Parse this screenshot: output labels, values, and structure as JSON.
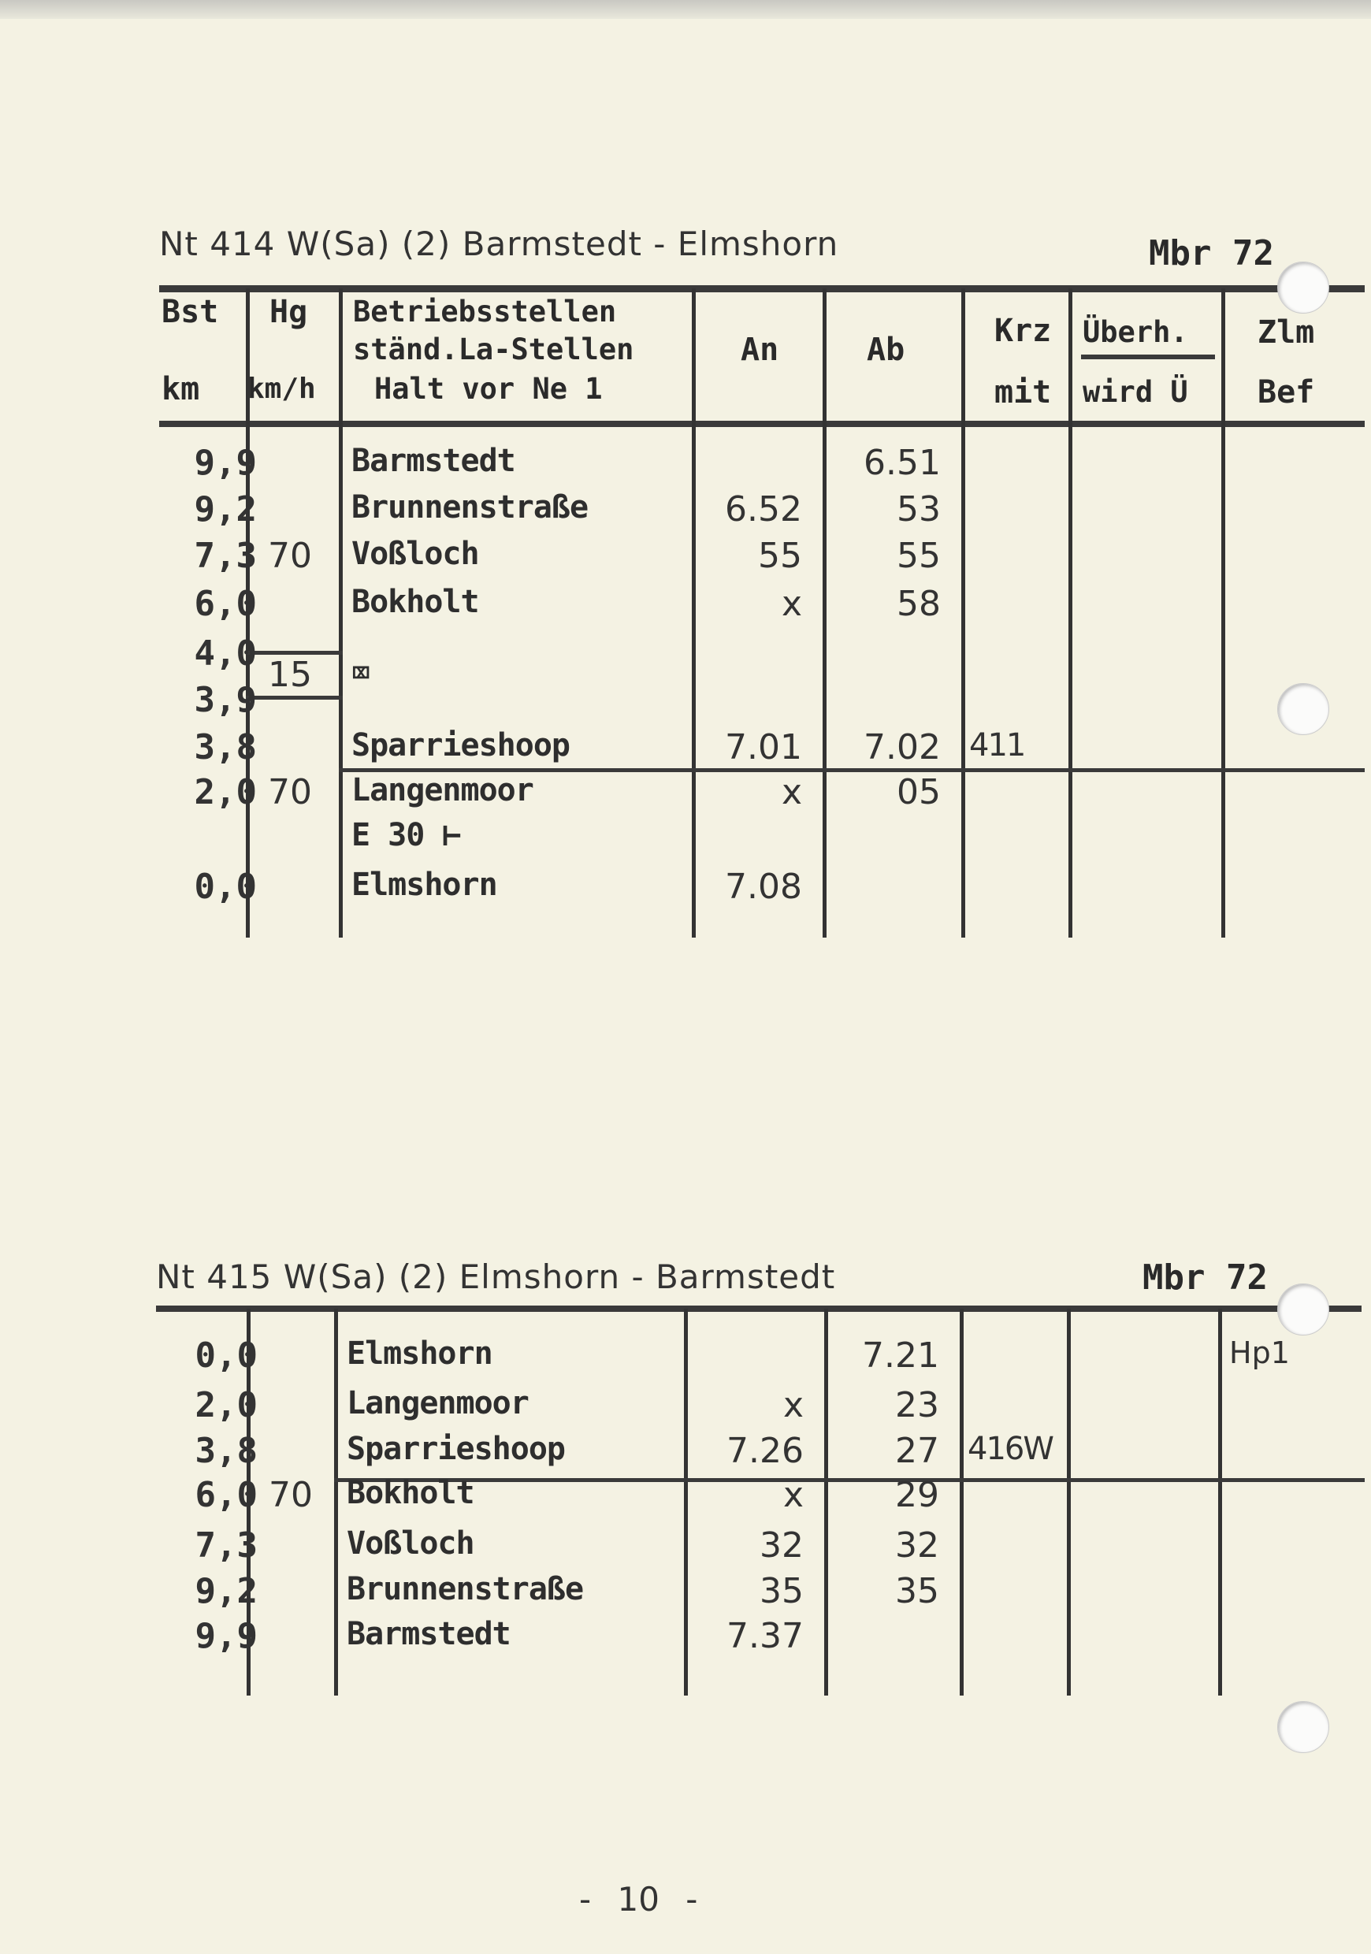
{
  "timetables": [
    {
      "title": "Nt 414 W(Sa) (2)  Barmstedt - Elmshorn",
      "valid": "Mbr 72",
      "headers": {
        "bst": "Bst",
        "km": "km",
        "hg": "Hg",
        "kmh": "km/h",
        "betrieb1": "Betriebsstellen",
        "betrieb2": "ständ.La-Stellen",
        "betrieb3": "Halt vor Ne 1",
        "an": "An",
        "ab": "Ab",
        "krz": "Krz",
        "mit": "mit",
        "uberh": "Überh.",
        "wird": "wird Ü",
        "zlm": "Zlm",
        "bef": "Bef"
      },
      "rows": [
        {
          "km": "9,9",
          "hg": "",
          "station": "Barmstedt",
          "an": "",
          "ab": "6.51",
          "krz": "",
          "zlm": ""
        },
        {
          "km": "9,2",
          "hg": "",
          "station": "Brunnenstraße",
          "an": "6.52",
          "ab": "53",
          "krz": "",
          "zlm": ""
        },
        {
          "km": "7,3",
          "hg": "70",
          "station": "Voßloch",
          "an": "55",
          "ab": "55",
          "krz": "",
          "zlm": ""
        },
        {
          "km": "6,0",
          "hg": "",
          "station": "Bokholt",
          "an": "x",
          "ab": "58",
          "krz": "",
          "zlm": ""
        },
        {
          "km": "4,0",
          "hg": "",
          "station": "",
          "an": "",
          "ab": "",
          "krz": "",
          "zlm": ""
        },
        {
          "km": "3,9",
          "hg": "15",
          "station": "⌧",
          "an": "",
          "ab": "",
          "krz": "",
          "zlm": ""
        },
        {
          "km": "3,8",
          "hg": "",
          "station": "Sparrieshoop",
          "an": "7.01",
          "ab": "7.02",
          "krz": "411",
          "zlm": ""
        },
        {
          "km": "2,0",
          "hg": "70",
          "station": "Langenmoor",
          "an": "x",
          "ab": "05",
          "krz": "",
          "zlm": ""
        },
        {
          "km": "",
          "hg": "",
          "station": "E 30 ⊢",
          "an": "",
          "ab": "",
          "krz": "",
          "zlm": ""
        },
        {
          "km": "0,0",
          "hg": "",
          "station": "Elmshorn",
          "an": "7.08",
          "ab": "",
          "krz": "",
          "zlm": ""
        }
      ]
    },
    {
      "title": "Nt 415 W(Sa) (2)  Elmshorn - Barmstedt",
      "valid": "Mbr 72",
      "rows": [
        {
          "km": "0,0",
          "hg": "",
          "station": "Elmshorn",
          "an": "",
          "ab": "7.21",
          "krz": "",
          "zlm": "Hp1"
        },
        {
          "km": "2,0",
          "hg": "",
          "station": "Langenmoor",
          "an": "x",
          "ab": "23",
          "krz": "",
          "zlm": ""
        },
        {
          "km": "3,8",
          "hg": "",
          "station": "Sparrieshoop",
          "an": "7.26",
          "ab": "27",
          "krz": "416W",
          "zlm": ""
        },
        {
          "km": "6,0",
          "hg": "70",
          "station": "Bokholt",
          "an": "x",
          "ab": "29",
          "krz": "",
          "zlm": ""
        },
        {
          "km": "7,3",
          "hg": "",
          "station": "Voßloch",
          "an": "32",
          "ab": "32",
          "krz": "",
          "zlm": ""
        },
        {
          "km": "9,2",
          "hg": "",
          "station": "Brunnenstraße",
          "an": "35",
          "ab": "35",
          "krz": "",
          "zlm": ""
        },
        {
          "km": "9,9",
          "hg": "",
          "station": "Barmstedt",
          "an": "7.37",
          "ab": "",
          "krz": "",
          "zlm": ""
        }
      ]
    }
  ],
  "page_number": "- 10 -"
}
